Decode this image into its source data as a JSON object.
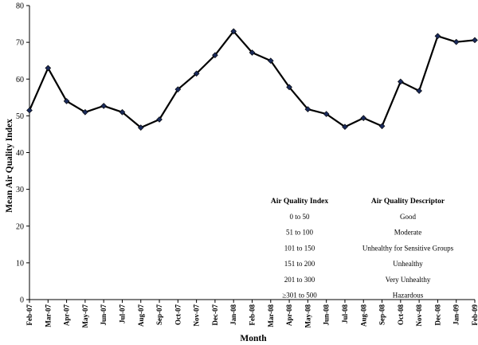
{
  "chart_data": {
    "type": "line",
    "title": "",
    "xlabel": "Month",
    "ylabel": "Mean Air Quality Index",
    "ylim": [
      0,
      80
    ],
    "yticks": [
      0,
      10,
      20,
      30,
      40,
      50,
      60,
      70,
      80
    ],
    "grid": false,
    "categories": [
      "Feb-07",
      "Mar-07",
      "Apr-07",
      "May-07",
      "Jun-07",
      "Jul-07",
      "Aug-07",
      "Sep-07",
      "Oct-07",
      "Nov-07",
      "Dec-07",
      "Jan-08",
      "Feb-08",
      "Mar-08",
      "Apr-08",
      "May-08",
      "Jun-08",
      "Jul-08",
      "Aug-08",
      "Sep-08",
      "Oct-08",
      "Nov-08",
      "Dec-08",
      "Jan-09",
      "Feb-09"
    ],
    "series": [
      {
        "values": [
          51.5,
          63,
          54,
          51,
          52.7,
          51,
          46.8,
          49,
          57.2,
          61.5,
          66.5,
          73,
          67.2,
          65,
          57.8,
          51.8,
          50.5,
          47,
          49.4,
          47.2,
          59.3,
          56.8,
          71.7,
          70.1,
          70.6
        ]
      }
    ],
    "line_color": "#000000",
    "marker": "diamond",
    "table": {
      "header": [
        "Air Quality Index",
        "Air Quality Descriptor"
      ],
      "rows": [
        [
          "0 to 50",
          "Good"
        ],
        [
          "51 to 100",
          "Moderate"
        ],
        [
          "101 to 150",
          "Unhealthy for Sensitive Groups"
        ],
        [
          "151 to 200",
          "Unhealthy"
        ],
        [
          "201 to 300",
          "Very Unhealthy"
        ],
        [
          "≥301 to 500",
          "Hazardous"
        ]
      ]
    }
  }
}
